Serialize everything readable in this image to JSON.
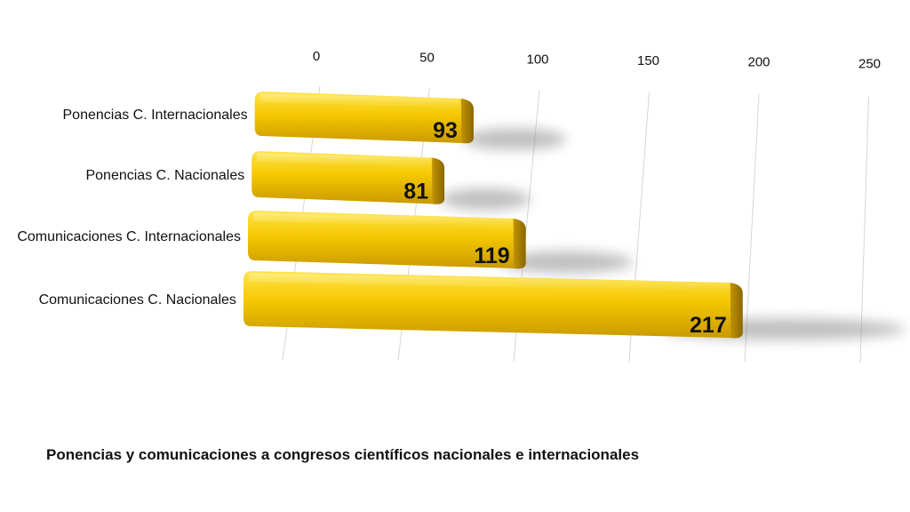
{
  "chart_data": {
    "type": "bar",
    "orientation": "horizontal",
    "style": "3d-perspective",
    "title": "Ponencias y comunicaciones a congresos científicos nacionales e internacionales",
    "categories": [
      "Ponencias C. Internacionales",
      "Ponencias C. Nacionales",
      "Comunicaciones C. Internacionales",
      "Comunicaciones C. Nacionales"
    ],
    "values": [
      93,
      81,
      119,
      217
    ],
    "xlim": [
      0,
      250
    ],
    "xticks": [
      0,
      50,
      100,
      150,
      200,
      250
    ],
    "grid": true,
    "legend": "none",
    "bar_color": "#F2C200"
  }
}
